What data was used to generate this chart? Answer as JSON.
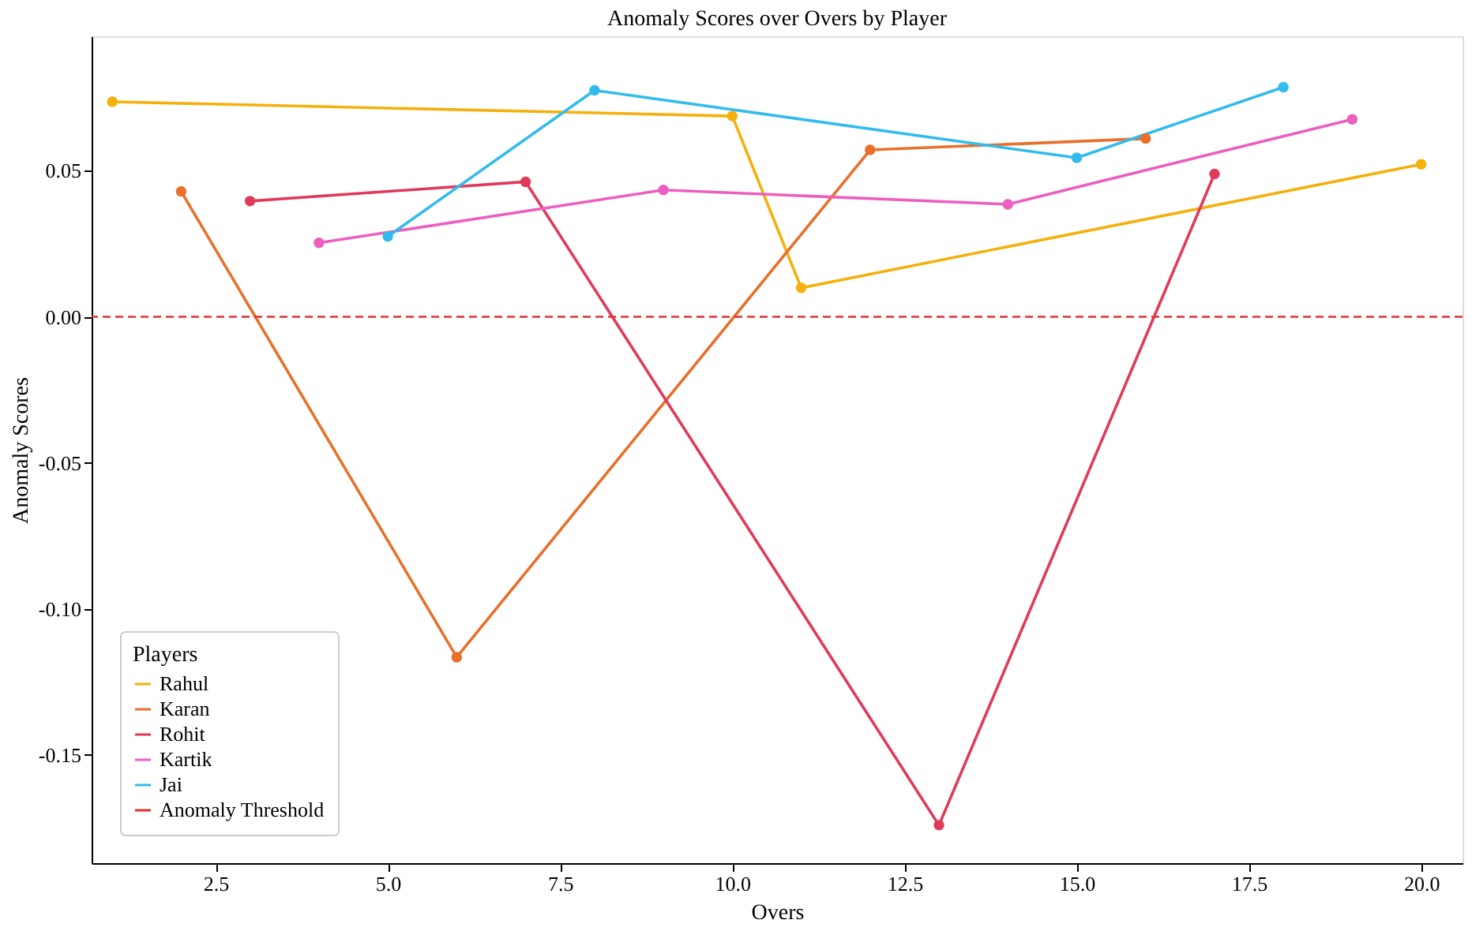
{
  "chart_data": {
    "type": "line",
    "title": "Anomaly Scores  over Overs by Player",
    "xlabel": "Overs",
    "ylabel": "Anomaly Scores",
    "legend_title": "Players",
    "legend": "bottom left",
    "marker": "circle",
    "line_style": "solid",
    "grid": false,
    "xlim": [
      0.7,
      20.6
    ],
    "ylim": [
      -0.187,
      0.096
    ],
    "xticks": [
      {
        "value": 2.5,
        "label": "2.5"
      },
      {
        "value": 5,
        "label": "5.0"
      },
      {
        "value": 7.5,
        "label": "7.5"
      },
      {
        "value": 10,
        "label": "10.0"
      },
      {
        "value": 12.5,
        "label": "12.5"
      },
      {
        "value": 15,
        "label": "15.0"
      },
      {
        "value": 17.5,
        "label": "17.5"
      },
      {
        "value": 20,
        "label": "20.0"
      }
    ],
    "yticks": [
      {
        "value": -0.15,
        "label": "-0.15"
      },
      {
        "value": -0.1,
        "label": "-0.10"
      },
      {
        "value": -0.05,
        "label": "-0.05"
      },
      {
        "value": 0,
        "label": "0.00"
      },
      {
        "value": 0.05,
        "label": "0.05"
      }
    ],
    "series": [
      {
        "name": "Rahul",
        "color": "#f4b00c",
        "x": [
          1,
          10,
          11,
          20
        ],
        "values": [
          0.0736,
          0.0687,
          0.0099,
          0.0522
        ]
      },
      {
        "name": "Karan",
        "color": "#e8702a",
        "x": [
          2,
          6,
          12,
          16
        ],
        "values": [
          0.0429,
          -0.1165,
          0.0571,
          0.061
        ]
      },
      {
        "name": "Rohit",
        "color": "#e03a5a",
        "x": [
          3,
          7,
          13,
          17
        ],
        "values": [
          0.0396,
          0.0462,
          -0.174,
          0.0489
        ]
      },
      {
        "name": "Kartik",
        "color": "#ec5fbf",
        "x": [
          4,
          9,
          14,
          19
        ],
        "values": [
          0.0253,
          0.0434,
          0.0385,
          0.0676
        ]
      },
      {
        "name": "Jai",
        "color": "#33bbee",
        "x": [
          5,
          8,
          15,
          18
        ],
        "values": [
          0.0275,
          0.0775,
          0.0544,
          0.0786
        ]
      }
    ],
    "ref_lines": [
      {
        "axis": "y",
        "value": 0,
        "label": "Anomaly Threshold",
        "color": "#e03030",
        "line_style": "dashed"
      }
    ]
  }
}
